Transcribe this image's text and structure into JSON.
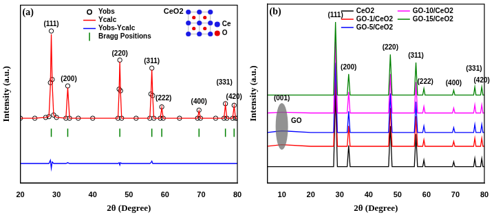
{
  "chart_data": [
    {
      "type": "line",
      "title": "(a)",
      "x_label": "2θ (Degree)",
      "y_label": "Intensity (a.u.)",
      "xlim": [
        20,
        80
      ],
      "xticks": [
        20,
        30,
        40,
        50,
        60,
        70,
        80
      ],
      "ylim": [
        0,
        110
      ],
      "tick_labels": "x",
      "grid": false,
      "legend": "top",
      "x": [
        20,
        24,
        27,
        27.9,
        28.3,
        28.55,
        28.8,
        29.2,
        30,
        32.6,
        33.1,
        33.6,
        36,
        40,
        47.0,
        47.3,
        47.5,
        47.7,
        48.0,
        52,
        55.8,
        56.1,
        56.35,
        56.6,
        56.9,
        58.7,
        59.1,
        59.5,
        64,
        69.0,
        69.4,
        69.8,
        74,
        76.3,
        76.7,
        77.1,
        78.7,
        79.1,
        79.5,
        80
      ],
      "series": [
        {
          "name": "Yobs",
          "type": "scatter",
          "marker": "circle",
          "color": "#000000",
          "values": [
            40,
            40,
            40.5,
            41,
            62,
            94,
            64,
            42,
            40.5,
            40,
            60,
            40,
            40,
            40,
            40,
            58,
            76,
            57,
            40,
            40,
            40,
            55,
            71,
            54,
            40,
            40,
            47,
            40,
            40,
            40,
            45,
            40,
            40,
            40,
            49,
            40,
            40,
            48,
            40,
            40
          ]
        },
        {
          "name": "Ycalc",
          "color": "#ff0000",
          "values": [
            40,
            40,
            40.5,
            41,
            60,
            92,
            62,
            42,
            40.5,
            40,
            59,
            40,
            40,
            40,
            40,
            57,
            75,
            56,
            40,
            40,
            40,
            54,
            70,
            53,
            40,
            40,
            46.5,
            40,
            40,
            40,
            44.5,
            40,
            40,
            40,
            48.5,
            40,
            40,
            47.5,
            40,
            40
          ]
        },
        {
          "name": "Yobs-Ycalc",
          "color": "#0000ff",
          "values": [
            12,
            12,
            12,
            12,
            14,
            9,
            13,
            12,
            12,
            12,
            12.5,
            12,
            12,
            12,
            12,
            12.5,
            11,
            12.5,
            12,
            12,
            12,
            12.5,
            13.5,
            12,
            12,
            12,
            12,
            12,
            12,
            12,
            12,
            12,
            12,
            12,
            12,
            12,
            12,
            12,
            12,
            12
          ]
        },
        {
          "name": "Bragg Positions",
          "type": "scatter",
          "marker": "vline",
          "color": "#008000",
          "x": [
            28.55,
            33.1,
            47.5,
            56.35,
            59.1,
            69.4,
            76.7,
            79.1
          ],
          "values": [
            31,
            31,
            31,
            31,
            31,
            31,
            31,
            31
          ]
        }
      ],
      "annotations": [
        {
          "text": "(111)",
          "x": 28.55,
          "y": 96
        },
        {
          "text": "(200)",
          "x": 33.4,
          "y": 62
        },
        {
          "text": "(220)",
          "x": 47.5,
          "y": 78
        },
        {
          "text": "(311)",
          "x": 56.35,
          "y": 73
        },
        {
          "text": "(222)",
          "x": 59.6,
          "y": 50
        },
        {
          "text": "(400)",
          "x": 69.4,
          "y": 48
        },
        {
          "text": "(331)",
          "x": 76.4,
          "y": 60
        },
        {
          "text": "(420)",
          "x": 79.1,
          "y": 51
        }
      ],
      "inset": {
        "title": "CeO2",
        "elements": [
          {
            "name": "Ce",
            "color": "#1a1ae6"
          },
          {
            "name": "O",
            "color": "#e60000"
          }
        ]
      }
    },
    {
      "type": "line",
      "title": "(b)",
      "x_label": "2θ (Degree)",
      "y_label": "Intensity (a.u.)",
      "xlim": [
        5,
        80
      ],
      "xticks": [
        10,
        20,
        30,
        40,
        50,
        60,
        70,
        80
      ],
      "ylim": [
        0,
        110
      ],
      "tick_labels": "x",
      "grid": false,
      "legend": "top",
      "x": [
        5,
        10,
        20,
        27.9,
        28.55,
        29.2,
        32.6,
        33.1,
        33.6,
        46.9,
        47.5,
        48.1,
        55.8,
        56.35,
        56.9,
        58.7,
        59.1,
        59.5,
        69.0,
        69.4,
        69.8,
        76.3,
        76.7,
        77.1,
        78.7,
        79.1,
        79.5,
        80
      ],
      "series": [
        {
          "name": "CeO2",
          "color": "#000000",
          "values": [
            10,
            10,
            10,
            10,
            55,
            10,
            10,
            23,
            10,
            10,
            35,
            10,
            10,
            30,
            10,
            10,
            14,
            10,
            10,
            13,
            10,
            10,
            15,
            10,
            10,
            15,
            10,
            10
          ]
        },
        {
          "name": "GO-1/CeO2",
          "color": "#ff0000",
          "values": [
            22.5,
            23.5,
            22.5,
            22.5,
            66,
            22.5,
            22.5,
            35,
            22.5,
            22.5,
            46,
            22.5,
            22.5,
            41,
            22.5,
            22.5,
            26.5,
            22.5,
            22.5,
            25.5,
            22.5,
            22.5,
            27.5,
            22.5,
            22.5,
            27.5,
            22.5,
            22.5
          ]
        },
        {
          "name": "GO-5/CeO2",
          "color": "#0000ff",
          "values": [
            31,
            32,
            31,
            31,
            74,
            31,
            31,
            44,
            31,
            31,
            55,
            31,
            31,
            50,
            31,
            31,
            35,
            31,
            31,
            34,
            31,
            31,
            36,
            31,
            31,
            36,
            31,
            31
          ]
        },
        {
          "name": "GO-10/CeO2",
          "color": "#ff00ff",
          "values": [
            43,
            43.5,
            43,
            43,
            87,
            43,
            43,
            56,
            43,
            43,
            67,
            43,
            43,
            62,
            43,
            43,
            47,
            43,
            43,
            46,
            43,
            43,
            48,
            43,
            43,
            48,
            43,
            43
          ]
        },
        {
          "name": "GO-15/CeO2",
          "color": "#008000",
          "values": [
            54,
            54,
            54,
            54,
            99,
            54,
            54,
            67,
            54,
            54,
            79,
            54,
            54,
            74,
            54,
            54,
            58,
            54,
            54,
            57,
            54,
            54,
            59,
            54,
            54,
            59,
            54,
            54
          ]
        }
      ],
      "annotations": [
        {
          "text": "(001)",
          "x": 10,
          "y": 50,
          "marker": "ellipse"
        },
        {
          "text": "GO",
          "x": 15,
          "y": 36
        },
        {
          "text": "(111)",
          "x": 28.55,
          "y": 101
        },
        {
          "text": "(200)",
          "x": 33.1,
          "y": 69
        },
        {
          "text": "(220)",
          "x": 47.5,
          "y": 81
        },
        {
          "text": "(311)",
          "x": 56.35,
          "y": 76
        },
        {
          "text": "(222)",
          "x": 59.6,
          "y": 60
        },
        {
          "text": "(400)",
          "x": 69.4,
          "y": 59
        },
        {
          "text": "(331)",
          "x": 76.4,
          "y": 68
        },
        {
          "text": "(420)",
          "x": 79.1,
          "y": 61
        }
      ]
    }
  ]
}
